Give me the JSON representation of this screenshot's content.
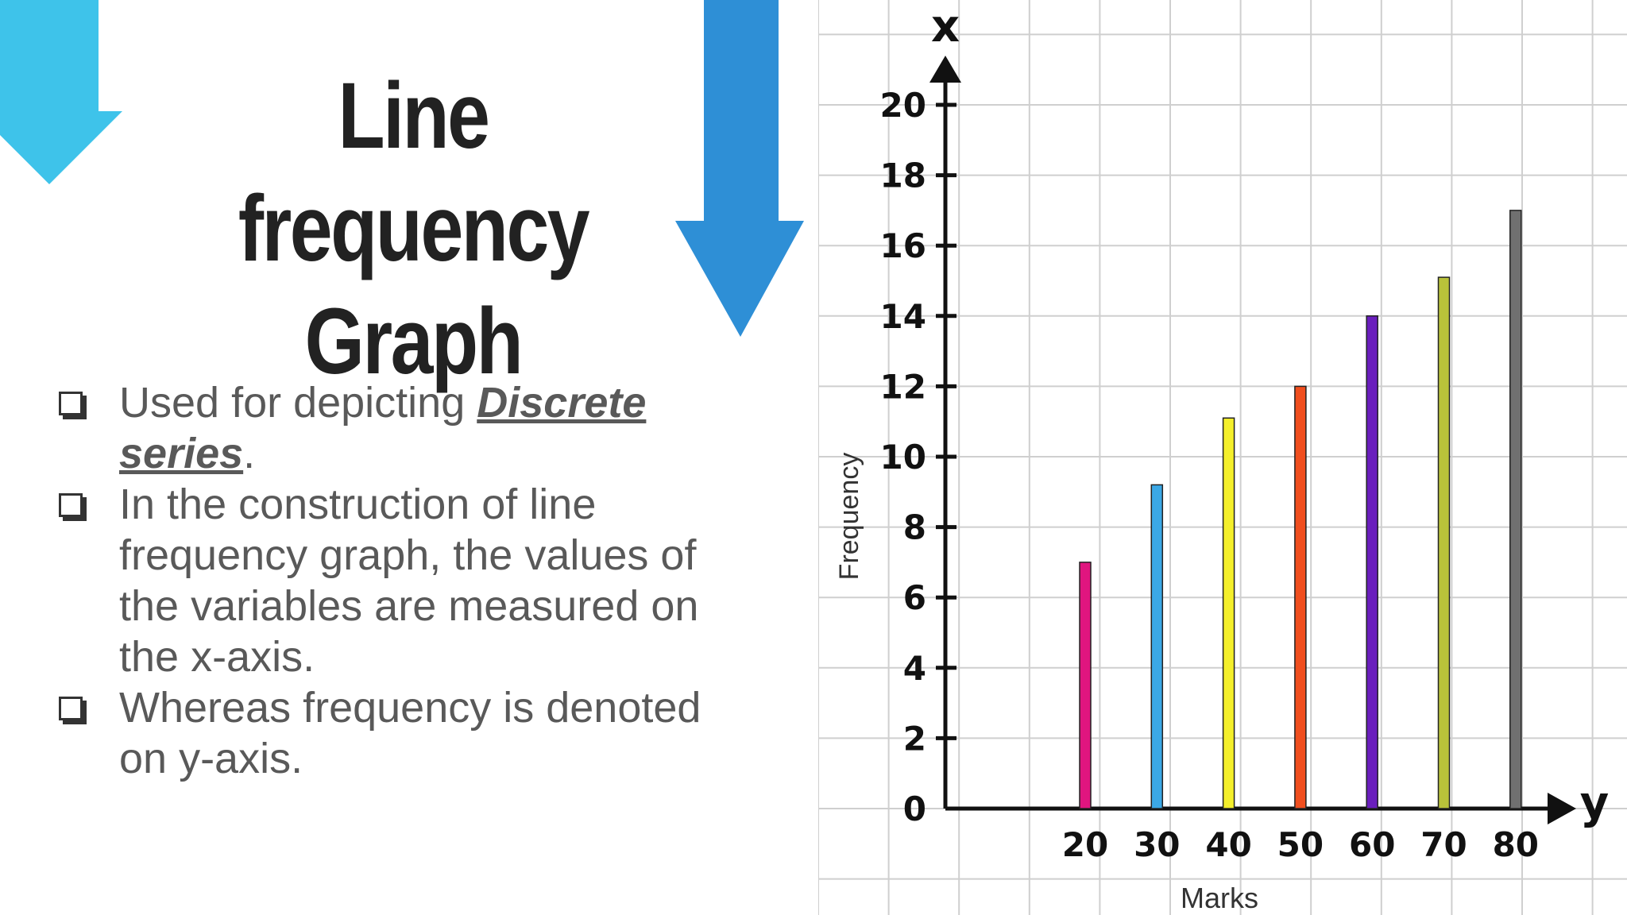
{
  "slide": {
    "title_line1": "Line frequency",
    "title_line2": "Graph",
    "bullets": [
      {
        "pre": "Used for depicting ",
        "em": "Discrete series",
        "post": "."
      },
      {
        "text": "In the construction of line frequency graph, the values of the variables are measured on the x-axis."
      },
      {
        "text": "Whereas frequency is denoted on y-axis."
      }
    ],
    "icons": [
      "arrow-down-icon",
      "arrow-down-icon",
      "checkbox-bullet-icon"
    ],
    "colors": {
      "arrow_light": "#3ec3ea",
      "arrow_dark": "#2e8fd6",
      "title": "#222222",
      "text": "#595959"
    }
  },
  "chart_data": {
    "type": "bar",
    "categories": [
      "20",
      "30",
      "40",
      "50",
      "60",
      "70",
      "80"
    ],
    "series": [
      {
        "values": [
          7,
          9.2,
          11.1,
          12,
          14,
          15.1,
          17
        ]
      }
    ],
    "bar_colors": [
      "#e0157f",
      "#3ba8e6",
      "#f4ef2b",
      "#f04e1e",
      "#6a1fbd",
      "#b9c23a",
      "#707070"
    ],
    "title": "",
    "xlabel": "Marks",
    "ylabel": "Frequency",
    "x_axis_letter": "y",
    "y_axis_letter": "x",
    "y_ticks": [
      "0",
      "2",
      "4",
      "6",
      "8",
      "10",
      "12",
      "14",
      "16",
      "18",
      "20"
    ],
    "ylim": [
      0,
      21
    ],
    "grid": true
  }
}
